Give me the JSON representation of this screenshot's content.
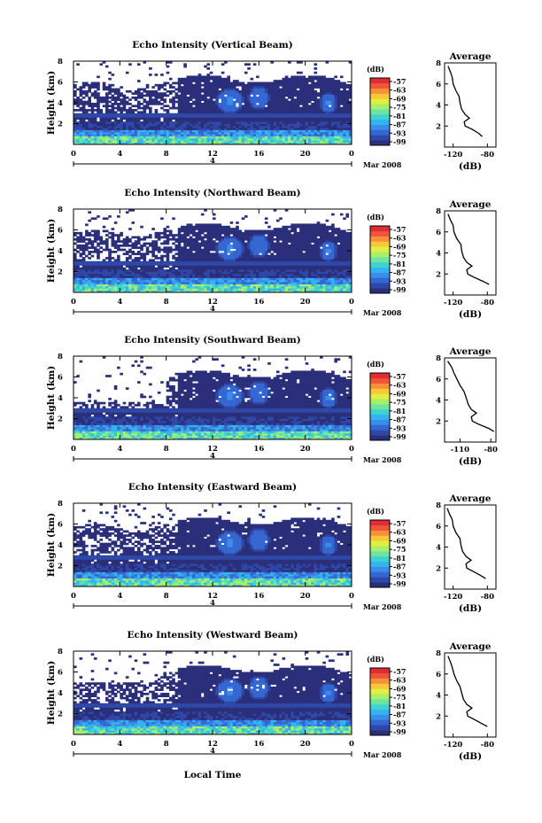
{
  "x_axis_label": "Local Time",
  "colorbar": {
    "unit": "(dB)",
    "tick_labels": [
      "-57",
      "-63",
      "-69",
      "-75",
      "-81",
      "-87",
      "-93",
      "-99"
    ],
    "colors": [
      "#2b2f7a",
      "#2e48a8",
      "#3467d2",
      "#3a8de8",
      "#35b3ee",
      "#3fd2cf",
      "#6fe3a2",
      "#a8ef6a",
      "#e2ee40",
      "#f8c838",
      "#f7903a",
      "#ee5637",
      "#e02c35"
    ]
  },
  "chart_data": [
    {
      "type": "heatmap",
      "title": "Echo Intensity (Vertical Beam)",
      "ylabel": "Height (km)",
      "yticks": [
        "8",
        "6",
        "4",
        "2"
      ],
      "xticks": [
        "0",
        "4",
        "8",
        "12",
        "16",
        "20",
        "0"
      ],
      "date_day": "4",
      "date_month": "Mar 2008",
      "xlim": [
        0,
        24
      ],
      "ylim": [
        0,
        8
      ],
      "profile": {
        "title": "Average",
        "xlabel": "(dB)",
        "xticks": [
          "-120",
          "-80"
        ],
        "yticks": [
          "8",
          "6",
          "4",
          "2"
        ],
        "xlim": [
          -130,
          -70
        ],
        "points": [
          [
            -86,
            1.0
          ],
          [
            -90,
            1.3
          ],
          [
            -98,
            1.7
          ],
          [
            -106,
            2.0
          ],
          [
            -107,
            2.4
          ],
          [
            -101,
            2.75
          ],
          [
            -106,
            3.1
          ],
          [
            -110,
            3.6
          ],
          [
            -112,
            4.2
          ],
          [
            -113,
            4.8
          ],
          [
            -117,
            5.4
          ],
          [
            -120,
            6.0
          ],
          [
            -121,
            6.6
          ],
          [
            -123,
            7.1
          ],
          [
            -126,
            7.7
          ]
        ]
      }
    },
    {
      "type": "heatmap",
      "title": "Echo Intensity (Northward Beam)",
      "ylabel": "Height (km)",
      "yticks": [
        "8",
        "6",
        "4",
        "2"
      ],
      "xticks": [
        "0",
        "4",
        "8",
        "12",
        "16",
        "20",
        "0"
      ],
      "date_day": "4",
      "date_month": "Mar 2008",
      "xlim": [
        0,
        24
      ],
      "ylim": [
        0,
        8
      ],
      "profile": {
        "title": "Average",
        "xlabel": "(dB)",
        "xticks": [
          "-120",
          "-80"
        ],
        "yticks": [
          "8",
          "6",
          "4",
          "2"
        ],
        "xlim": [
          -130,
          -70
        ],
        "points": [
          [
            -78,
            1.0
          ],
          [
            -85,
            1.3
          ],
          [
            -96,
            1.7
          ],
          [
            -103,
            2.0
          ],
          [
            -104,
            2.4
          ],
          [
            -98,
            2.75
          ],
          [
            -104,
            3.1
          ],
          [
            -108,
            3.6
          ],
          [
            -110,
            4.2
          ],
          [
            -111,
            4.8
          ],
          [
            -116,
            5.4
          ],
          [
            -119,
            6.0
          ],
          [
            -120,
            6.6
          ],
          [
            -123,
            7.1
          ],
          [
            -126,
            7.7
          ]
        ]
      }
    },
    {
      "type": "heatmap",
      "title": "Echo Intensity (Southward Beam)",
      "ylabel": "Height (km)",
      "yticks": [
        "8",
        "6",
        "4",
        "2"
      ],
      "xticks": [
        "0",
        "4",
        "8",
        "12",
        "16",
        "20",
        "0"
      ],
      "date_day": "4",
      "date_month": "Mar 2008",
      "xlim": [
        0,
        24
      ],
      "ylim": [
        0,
        8
      ],
      "profile": {
        "title": "Average",
        "xlabel": "(dB)",
        "xticks": [
          "-110",
          "-80"
        ],
        "yticks": [
          "8",
          "6",
          "4",
          "2"
        ],
        "xlim": [
          -125,
          -75
        ],
        "points": [
          [
            -77,
            1.0
          ],
          [
            -82,
            1.3
          ],
          [
            -92,
            1.7
          ],
          [
            -98,
            2.0
          ],
          [
            -99,
            2.4
          ],
          [
            -94,
            2.75
          ],
          [
            -99,
            3.1
          ],
          [
            -102,
            3.6
          ],
          [
            -104,
            4.2
          ],
          [
            -106,
            4.8
          ],
          [
            -110,
            5.4
          ],
          [
            -113,
            6.0
          ],
          [
            -116,
            6.6
          ],
          [
            -118,
            7.1
          ],
          [
            -122,
            7.7
          ]
        ]
      }
    },
    {
      "type": "heatmap",
      "title": "Echo Intensity (Eastward Beam)",
      "ylabel": "Height (km)",
      "yticks": [
        "8",
        "6",
        "4",
        "2"
      ],
      "xticks": [
        "0",
        "4",
        "8",
        "12",
        "16",
        "20",
        "0"
      ],
      "date_day": "4",
      "date_month": "Mar 2008",
      "xlim": [
        0,
        24
      ],
      "ylim": [
        0,
        8
      ],
      "profile": {
        "title": "Average",
        "xlabel": "(dB)",
        "xticks": [
          "-120",
          "-80"
        ],
        "yticks": [
          "8",
          "6",
          "4",
          "2"
        ],
        "xlim": [
          -130,
          -70
        ],
        "points": [
          [
            -82,
            1.0
          ],
          [
            -88,
            1.3
          ],
          [
            -97,
            1.7
          ],
          [
            -104,
            2.0
          ],
          [
            -105,
            2.4
          ],
          [
            -99,
            2.75
          ],
          [
            -105,
            3.1
          ],
          [
            -109,
            3.6
          ],
          [
            -111,
            4.2
          ],
          [
            -112,
            4.8
          ],
          [
            -117,
            5.4
          ],
          [
            -120,
            6.0
          ],
          [
            -121,
            6.6
          ],
          [
            -124,
            7.1
          ],
          [
            -127,
            7.7
          ]
        ]
      }
    },
    {
      "type": "heatmap",
      "title": "Echo Intensity (Westward Beam)",
      "ylabel": "Height (km)",
      "yticks": [
        "8",
        "6",
        "4",
        "2"
      ],
      "xticks": [
        "0",
        "4",
        "8",
        "12",
        "16",
        "20",
        "0"
      ],
      "date_day": "4",
      "date_month": "Mar 2008",
      "xlim": [
        0,
        24
      ],
      "ylim": [
        0,
        8
      ],
      "profile": {
        "title": "Average",
        "xlabel": "(dB)",
        "xticks": [
          "-120",
          "-80"
        ],
        "yticks": [
          "8",
          "6",
          "4",
          "2"
        ],
        "xlim": [
          -130,
          -70
        ],
        "points": [
          [
            -80,
            1.0
          ],
          [
            -87,
            1.3
          ],
          [
            -96,
            1.7
          ],
          [
            -103,
            2.0
          ],
          [
            -104,
            2.4
          ],
          [
            -98,
            2.75
          ],
          [
            -104,
            3.1
          ],
          [
            -108,
            3.6
          ],
          [
            -110,
            4.2
          ],
          [
            -112,
            4.8
          ],
          [
            -116,
            5.4
          ],
          [
            -119,
            6.0
          ],
          [
            -121,
            6.6
          ],
          [
            -123,
            7.1
          ],
          [
            -126,
            7.7
          ]
        ]
      }
    }
  ]
}
